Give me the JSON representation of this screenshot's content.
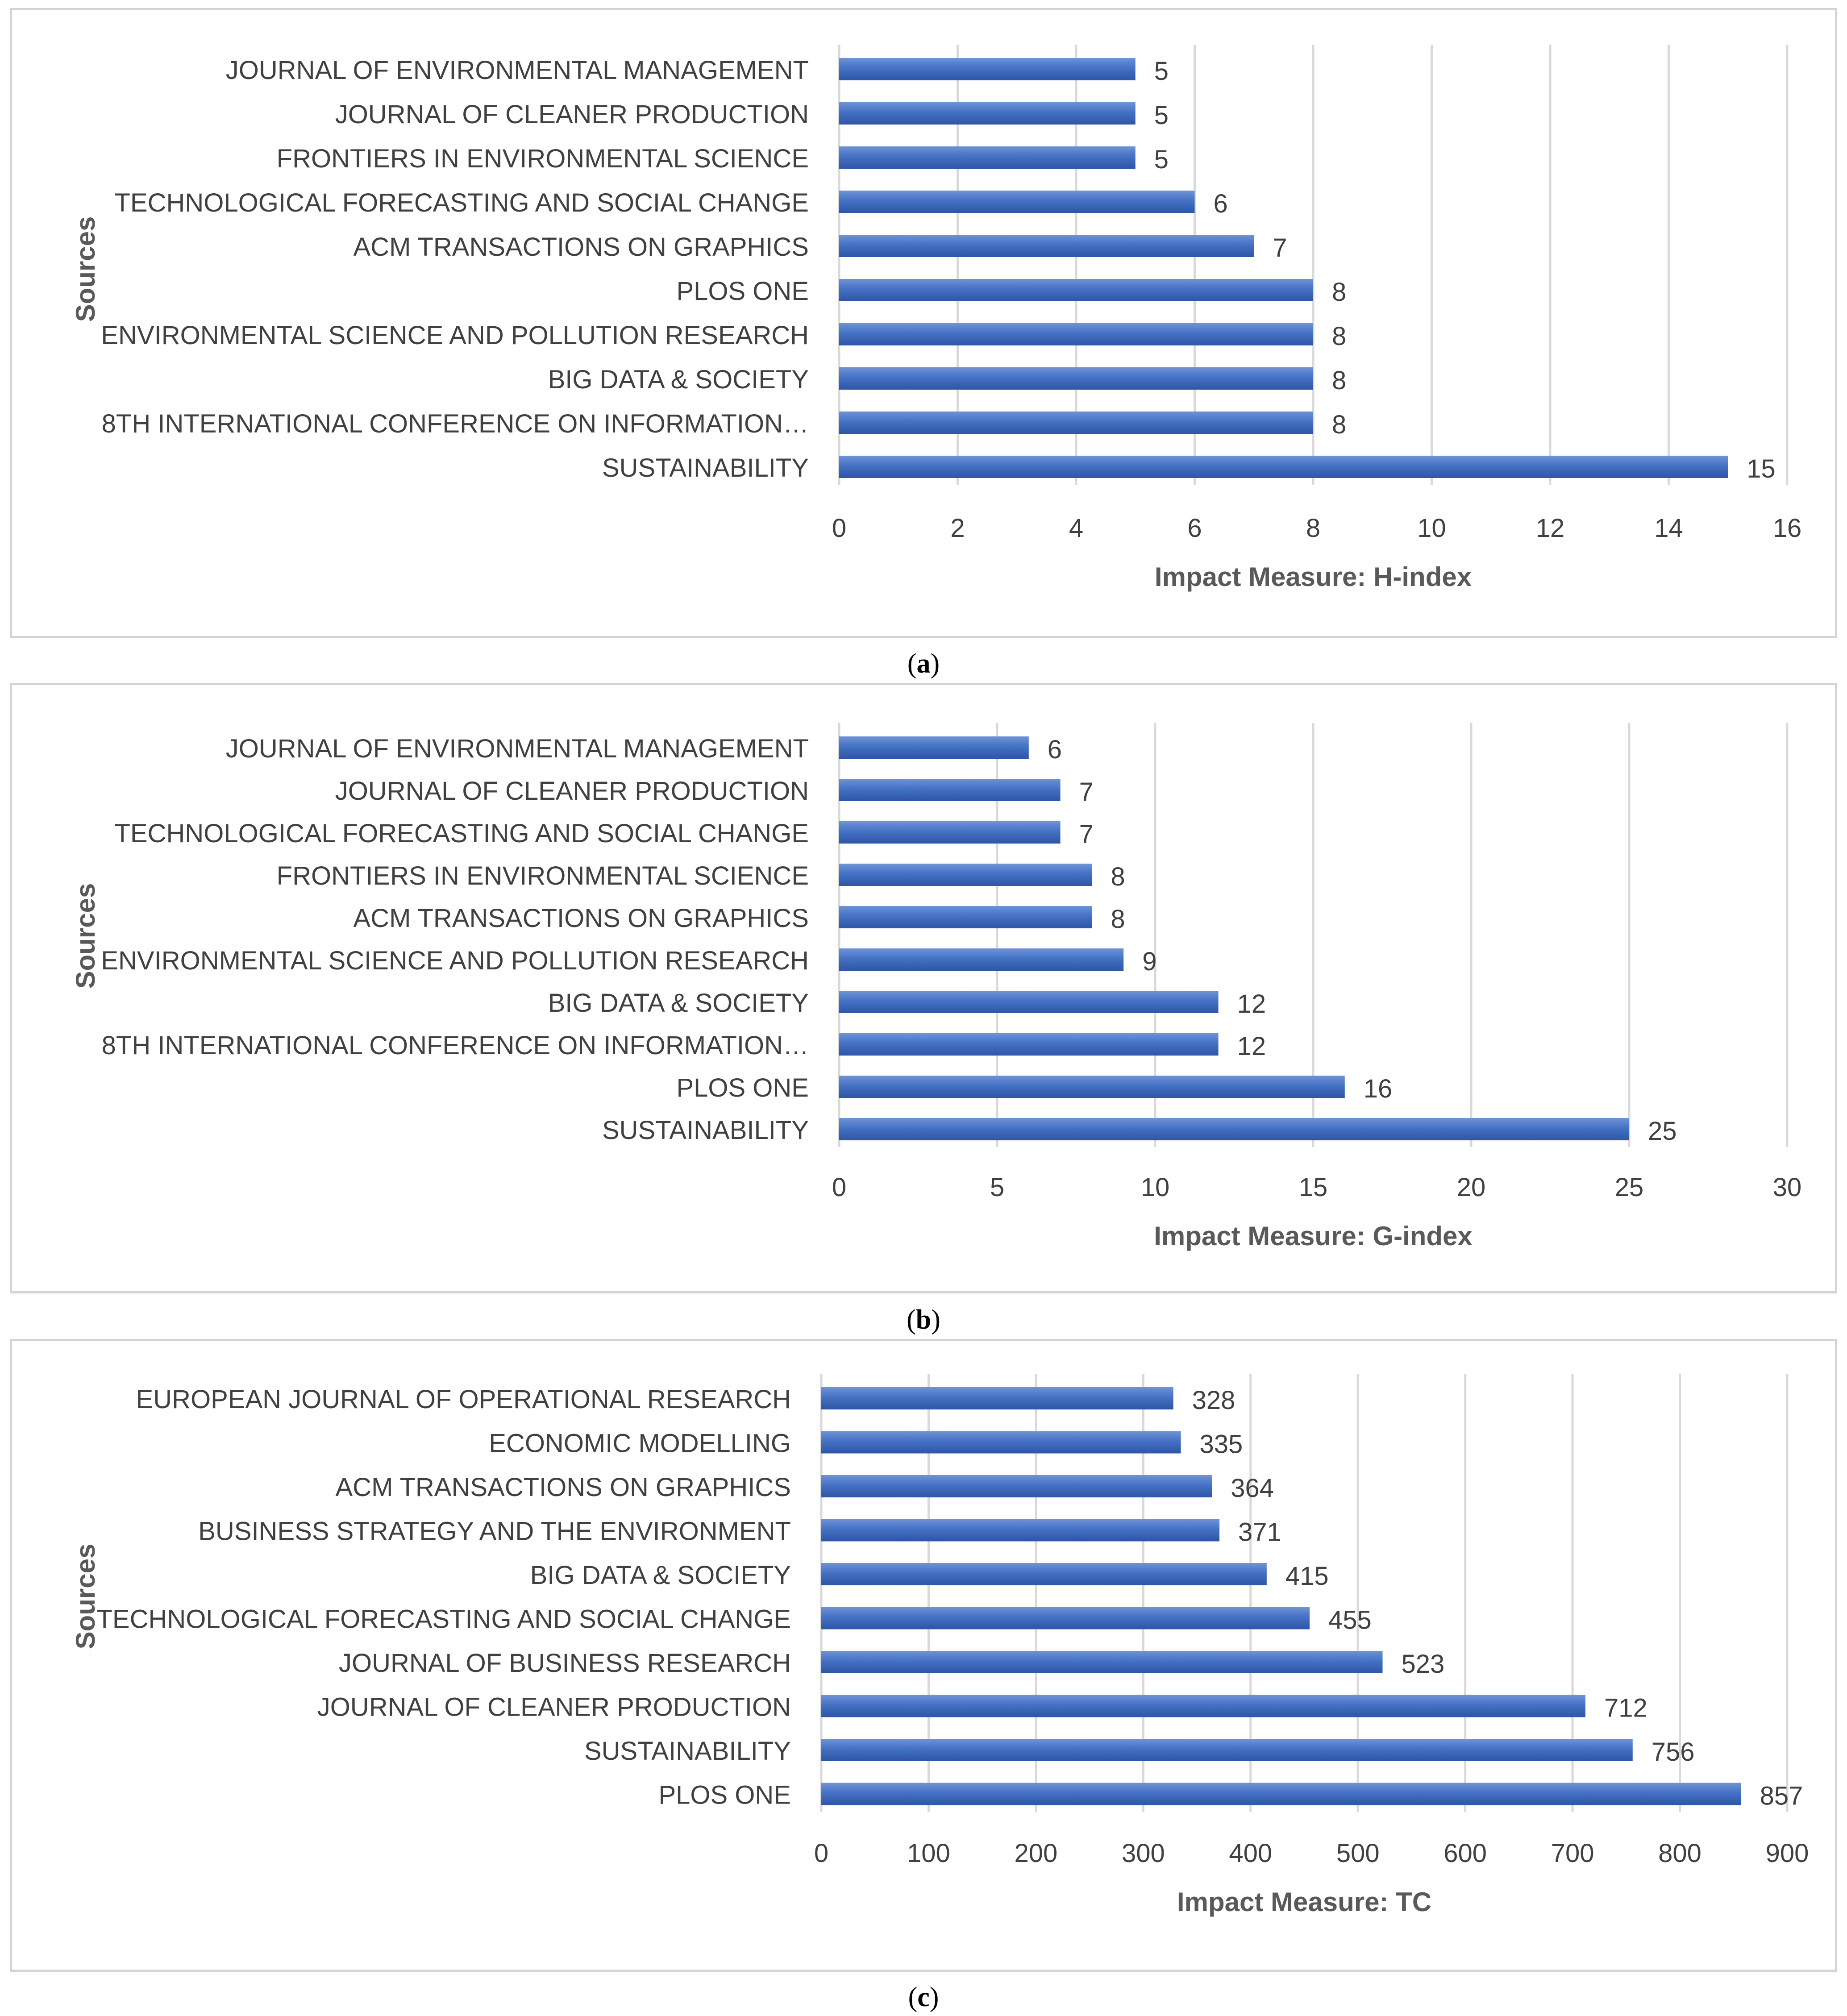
{
  "colors": {
    "bar": "#4472C4",
    "bar_dark": "#2f55a6",
    "bar_light": "#6f93d6",
    "grid": "#d9d9d9",
    "text": "#404040",
    "axis_title": "#595959"
  },
  "captions": [
    {
      "letter": "a",
      "open": "(",
      "close": ")"
    },
    {
      "letter": "b",
      "open": "(",
      "close": ")"
    },
    {
      "letter": "c",
      "open": "(",
      "close": ")"
    }
  ],
  "chart_data": [
    {
      "type": "bar",
      "orientation": "horizontal",
      "ylabel": "Sources",
      "xlabel": "Impact Measure: H-index",
      "xlim": [
        0,
        16
      ],
      "xticks": [
        0,
        2,
        4,
        6,
        8,
        10,
        12,
        14,
        16
      ],
      "grid": true,
      "categories": [
        "JOURNAL OF ENVIRONMENTAL MANAGEMENT",
        "JOURNAL OF CLEANER PRODUCTION",
        "FRONTIERS IN ENVIRONMENTAL SCIENCE",
        "TECHNOLOGICAL FORECASTING AND SOCIAL CHANGE",
        "ACM TRANSACTIONS ON GRAPHICS",
        "PLOS ONE",
        "ENVIRONMENTAL SCIENCE AND POLLUTION RESEARCH",
        "BIG DATA & SOCIETY",
        "8TH INTERNATIONAL CONFERENCE ON INFORMATION…",
        "SUSTAINABILITY"
      ],
      "values": [
        5,
        5,
        5,
        6,
        7,
        8,
        8,
        8,
        8,
        15
      ]
    },
    {
      "type": "bar",
      "orientation": "horizontal",
      "ylabel": "Sources",
      "xlabel": "Impact Measure: G-index",
      "xlim": [
        0,
        30
      ],
      "xticks": [
        0,
        5,
        10,
        15,
        20,
        25,
        30
      ],
      "grid": true,
      "categories": [
        "JOURNAL OF ENVIRONMENTAL MANAGEMENT",
        "JOURNAL OF CLEANER PRODUCTION",
        "TECHNOLOGICAL FORECASTING AND SOCIAL CHANGE",
        "FRONTIERS IN ENVIRONMENTAL SCIENCE",
        "ACM TRANSACTIONS ON GRAPHICS",
        "ENVIRONMENTAL SCIENCE AND POLLUTION RESEARCH",
        "BIG DATA & SOCIETY",
        "8TH INTERNATIONAL CONFERENCE ON INFORMATION…",
        "PLOS ONE",
        "SUSTAINABILITY"
      ],
      "values": [
        6,
        7,
        7,
        8,
        8,
        9,
        12,
        12,
        16,
        25
      ]
    },
    {
      "type": "bar",
      "orientation": "horizontal",
      "ylabel": "Sources",
      "xlabel": "Impact Measure: TC",
      "xlim": [
        0,
        900
      ],
      "xticks": [
        0,
        100,
        200,
        300,
        400,
        500,
        600,
        700,
        800,
        900
      ],
      "grid": true,
      "categories": [
        "EUROPEAN JOURNAL OF OPERATIONAL RESEARCH",
        "ECONOMIC MODELLING",
        "ACM TRANSACTIONS ON GRAPHICS",
        "BUSINESS STRATEGY AND THE ENVIRONMENT",
        "BIG DATA & SOCIETY",
        "TECHNOLOGICAL FORECASTING AND SOCIAL CHANGE",
        "JOURNAL OF BUSINESS RESEARCH",
        "JOURNAL OF CLEANER PRODUCTION",
        "SUSTAINABILITY",
        "PLOS ONE"
      ],
      "values": [
        328,
        335,
        364,
        371,
        415,
        455,
        523,
        712,
        756,
        857
      ]
    }
  ]
}
